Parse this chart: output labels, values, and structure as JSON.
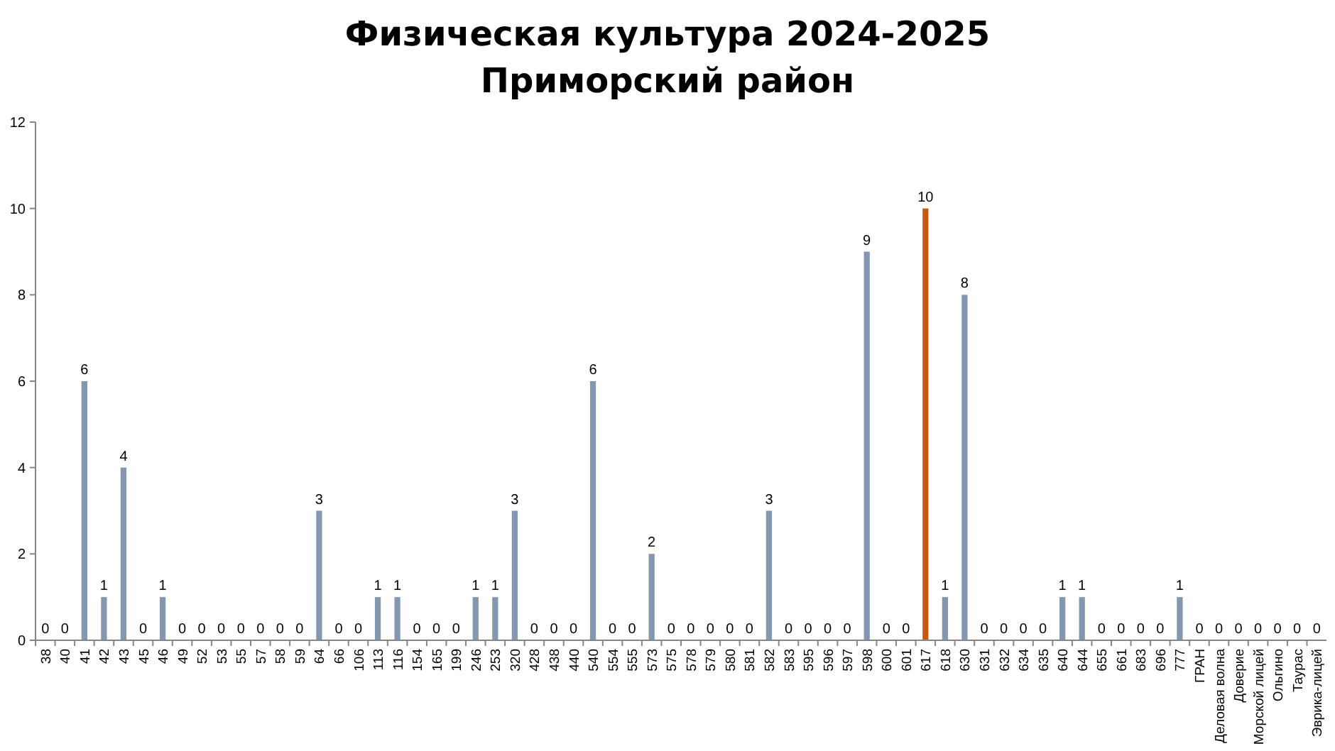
{
  "chart_data": {
    "type": "bar",
    "title": "Физическая культура 2024-2025\nПриморский район",
    "categories": [
      "38",
      "40",
      "41",
      "42",
      "43",
      "45",
      "46",
      "49",
      "52",
      "53",
      "55",
      "57",
      "58",
      "59",
      "64",
      "66",
      "106",
      "113",
      "116",
      "154",
      "165",
      "199",
      "246",
      "253",
      "320",
      "428",
      "438",
      "440",
      "540",
      "554",
      "555",
      "573",
      "575",
      "578",
      "579",
      "580",
      "581",
      "582",
      "583",
      "595",
      "596",
      "597",
      "598",
      "600",
      "601",
      "617",
      "618",
      "630",
      "631",
      "632",
      "634",
      "635",
      "640",
      "644",
      "655",
      "661",
      "683",
      "696",
      "777",
      "ГРАН",
      "Деловая волна",
      "Доверие",
      "Морской лицей",
      "Ольгино",
      "Таурас",
      "Эврика-лицей"
    ],
    "values": [
      0,
      0,
      6,
      1,
      4,
      0,
      1,
      0,
      0,
      0,
      0,
      0,
      0,
      0,
      3,
      0,
      0,
      1,
      1,
      0,
      0,
      0,
      1,
      1,
      3,
      0,
      0,
      0,
      6,
      0,
      0,
      2,
      0,
      0,
      0,
      0,
      0,
      3,
      0,
      0,
      0,
      0,
      9,
      0,
      0,
      10,
      1,
      8,
      0,
      0,
      0,
      0,
      1,
      1,
      0,
      0,
      0,
      0,
      1,
      0,
      0,
      0,
      0,
      0,
      0,
      0
    ],
    "colors": [
      "#8497b0",
      "#8497b0",
      "#8497b0",
      "#8497b0",
      "#8497b0",
      "#8497b0",
      "#8497b0",
      "#8497b0",
      "#8497b0",
      "#8497b0",
      "#8497b0",
      "#8497b0",
      "#8497b0",
      "#8497b0",
      "#8497b0",
      "#8497b0",
      "#8497b0",
      "#8497b0",
      "#8497b0",
      "#8497b0",
      "#8497b0",
      "#8497b0",
      "#8497b0",
      "#8497b0",
      "#8497b0",
      "#8497b0",
      "#8497b0",
      "#8497b0",
      "#8497b0",
      "#8497b0",
      "#8497b0",
      "#8497b0",
      "#8497b0",
      "#8497b0",
      "#8497b0",
      "#8497b0",
      "#8497b0",
      "#8497b0",
      "#8497b0",
      "#8497b0",
      "#8497b0",
      "#8497b0",
      "#8497b0",
      "#8497b0",
      "#8497b0",
      "#c55a11",
      "#8497b0",
      "#8497b0",
      "#8497b0",
      "#8497b0",
      "#8497b0",
      "#8497b0",
      "#8497b0",
      "#8497b0",
      "#8497b0",
      "#8497b0",
      "#8497b0",
      "#8497b0",
      "#8497b0",
      "#8497b0",
      "#8497b0",
      "#8497b0",
      "#8497b0",
      "#8497b0",
      "#8497b0",
      "#8497b0"
    ],
    "ylim": [
      0,
      12
    ],
    "yticks": [
      0,
      2,
      4,
      6,
      8,
      10,
      12
    ],
    "data_labels": true,
    "grid": false
  }
}
